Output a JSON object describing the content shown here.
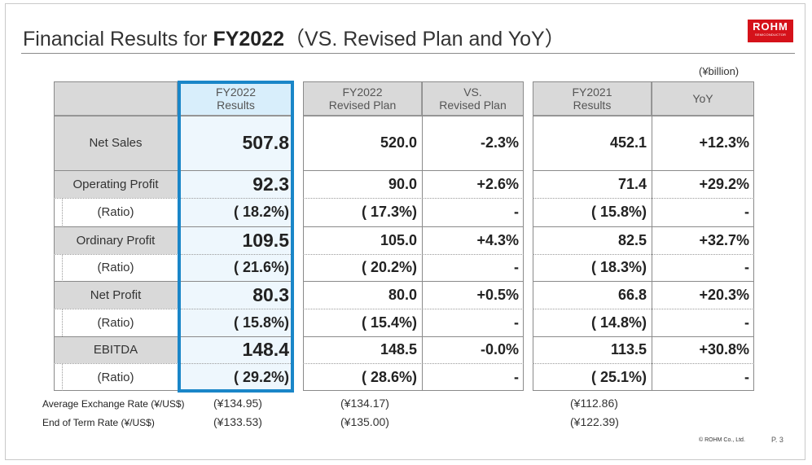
{
  "slide": {
    "title_prefix": "Financial Results for ",
    "title_bold": "FY2022",
    "title_suffix": "（VS. Revised Plan and YoY）",
    "logo_text": "ROHM",
    "logo_subtext": "SEMICONDUCTOR",
    "unit": "(¥billion)",
    "copyright": "© ROHM Co., Ltd.",
    "page": "P. 3"
  },
  "table": {
    "headers": {
      "fy2022_results": [
        "FY2022",
        "Results"
      ],
      "fy2022_plan": [
        "FY2022",
        "Revised Plan"
      ],
      "vs_plan": [
        "VS.",
        "Revised Plan"
      ],
      "fy2021_results": [
        "FY2021",
        "Results"
      ],
      "yoy": "YoY"
    },
    "rows": [
      {
        "label": "Net Sales",
        "fy2022": "507.8",
        "plan": "520.0",
        "vs_plan": "-2.3%",
        "fy2021": "452.1",
        "yoy": "+12.3%"
      },
      {
        "label": "Operating Profit",
        "fy2022": "92.3",
        "plan": "90.0",
        "vs_plan": "+2.6%",
        "fy2021": "71.4",
        "yoy": "+29.2%"
      },
      {
        "label": "(Ratio)",
        "fy2022": "( 18.2%)",
        "plan": "( 17.3%)",
        "vs_plan": "-",
        "fy2021": "( 15.8%)",
        "yoy": "-"
      },
      {
        "label": "Ordinary Profit",
        "fy2022": "109.5",
        "plan": "105.0",
        "vs_plan": "+4.3%",
        "fy2021": "82.5",
        "yoy": "+32.7%"
      },
      {
        "label": "(Ratio)",
        "fy2022": "( 21.6%)",
        "plan": "( 20.2%)",
        "vs_plan": "-",
        "fy2021": "( 18.3%)",
        "yoy": "-"
      },
      {
        "label": "Net Profit",
        "fy2022": "80.3",
        "plan": "80.0",
        "vs_plan": "+0.5%",
        "fy2021": "66.8",
        "yoy": "+20.3%"
      },
      {
        "label": "(Ratio)",
        "fy2022": "( 15.8%)",
        "plan": "( 15.4%)",
        "vs_plan": "-",
        "fy2021": "( 14.8%)",
        "yoy": "-"
      },
      {
        "label": "EBITDA",
        "fy2022": "148.4",
        "plan": "148.5",
        "vs_plan": "-0.0%",
        "fy2021": "113.5",
        "yoy": "+30.8%"
      },
      {
        "label": "(Ratio)",
        "fy2022": "( 29.2%)",
        "plan": "( 28.6%)",
        "vs_plan": "-",
        "fy2021": "( 25.1%)",
        "yoy": "-"
      }
    ]
  },
  "rates": [
    {
      "label": "Average Exchange Rate (¥/US$)",
      "fy2022": "(¥134.95)",
      "plan": "(¥134.17)",
      "fy2021": "(¥112.86)"
    },
    {
      "label": "End of Term Rate (¥/US$)",
      "fy2022": "(¥133.53)",
      "plan": "(¥135.00)",
      "fy2021": "(¥122.39)"
    }
  ],
  "colors": {
    "highlight_border": "#1a86c8",
    "fy2022_header_bg": "#d8eefb",
    "fy2022_column_bg": "#eef7fd",
    "header_bg": "#d9d9d9",
    "logo_red": "#d5121a"
  }
}
